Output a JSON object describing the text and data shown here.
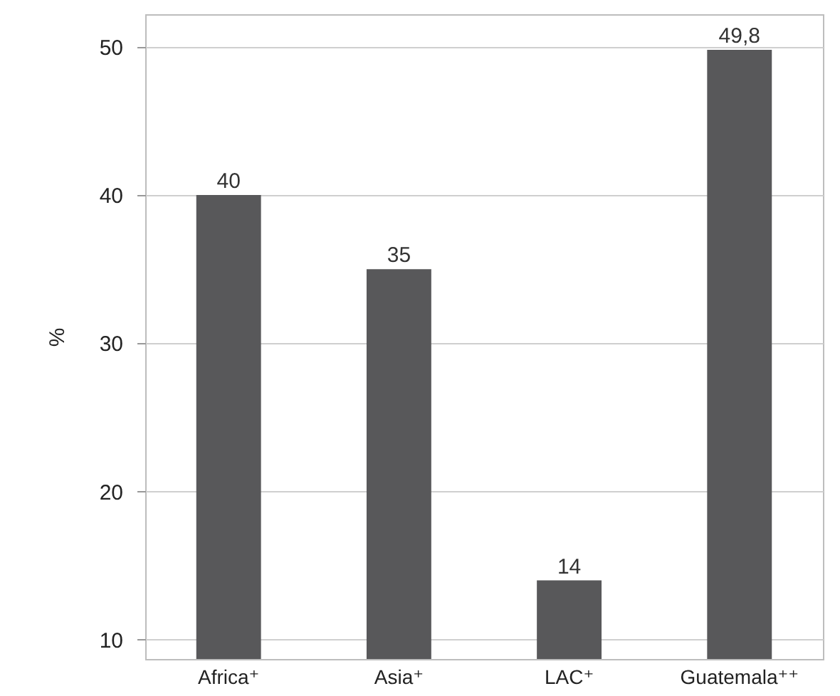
{
  "chart_data": {
    "type": "bar",
    "ylabel": "%",
    "categories": [
      "Africa⁺",
      "Asia⁺",
      "LAC⁺",
      "Guatemala⁺⁺"
    ],
    "values": [
      40,
      35,
      14,
      49.8
    ],
    "value_labels": [
      "40",
      "35",
      "14",
      "49,8"
    ],
    "color": "#58585a",
    "ylim": [
      8.7,
      52.2
    ],
    "yticks": [
      10,
      20,
      30,
      40,
      50
    ],
    "grid": "y"
  }
}
